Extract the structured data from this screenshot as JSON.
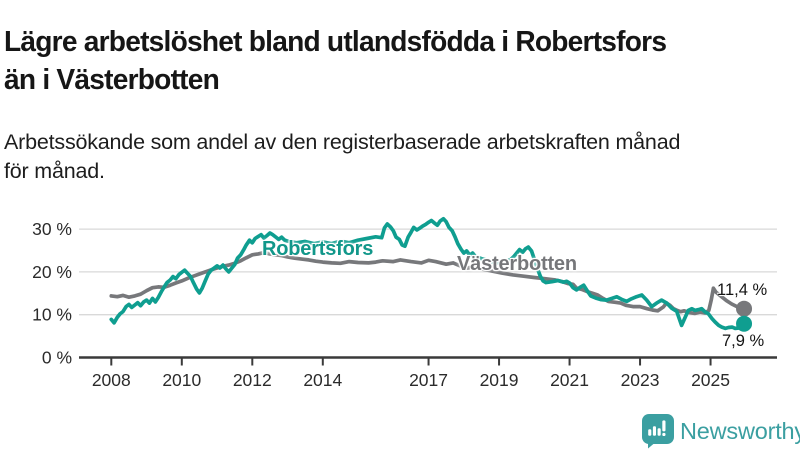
{
  "header": {
    "title_lines": [
      "Lägre arbetslöshet bland utlandsfödda i Robertsfors",
      "än i Västerbotten"
    ],
    "subtitle_lines": [
      "Arbetssökande som andel av den registerbaserade arbetskraften månad",
      "för månad."
    ]
  },
  "footer": {
    "brand": "Newsworthy"
  },
  "colors": {
    "robertsfors_teal": "#0f9e90",
    "vasterbotten_gray": "#77787b",
    "axis": "#3a3a3a",
    "grid": "#d9d9d9",
    "tick_text": "#2b2b2b",
    "brand_teal": "#3b9fa1"
  },
  "chart_data": {
    "type": "line",
    "title": "Lägre arbetslöshet bland utlandsfödda i Robertsfors än i Västerbotten",
    "subtitle": "Arbetssökande som andel av den registerbaserade arbetskraften månad för månad.",
    "x_unit": "year (decimal; monthly observations)",
    "y_unit": "percent",
    "ylim": [
      0,
      34
    ],
    "grid": "horizontal",
    "yticks": [
      {
        "value": 0,
        "label": "0 %"
      },
      {
        "value": 10,
        "label": "10 %"
      },
      {
        "value": 20,
        "label": "20 %"
      },
      {
        "value": 30,
        "label": "30 %"
      }
    ],
    "xticks": [
      {
        "value": 2008,
        "label": "2008"
      },
      {
        "value": 2010,
        "label": "2010"
      },
      {
        "value": 2012,
        "label": "2012"
      },
      {
        "value": 2014,
        "label": "2014"
      },
      {
        "value": 2017,
        "label": "2017"
      },
      {
        "value": 2019,
        "label": "2019"
      },
      {
        "value": 2021,
        "label": "2021"
      },
      {
        "value": 2023,
        "label": "2023"
      },
      {
        "value": 2025,
        "label": "2025"
      }
    ],
    "series": [
      {
        "name": "Robertsfors",
        "color": "#0f9e90",
        "end_label": "7,9 %",
        "end_value": 7.9,
        "points": [
          [
            2008.0,
            8.9
          ],
          [
            2008.08,
            8.1
          ],
          [
            2008.17,
            9.4
          ],
          [
            2008.25,
            10.2
          ],
          [
            2008.33,
            10.7
          ],
          [
            2008.42,
            11.9
          ],
          [
            2008.5,
            12.4
          ],
          [
            2008.58,
            11.7
          ],
          [
            2008.67,
            12.3
          ],
          [
            2008.75,
            12.8
          ],
          [
            2008.83,
            12.1
          ],
          [
            2008.92,
            13.0
          ],
          [
            2009.0,
            13.4
          ],
          [
            2009.08,
            12.7
          ],
          [
            2009.17,
            13.8
          ],
          [
            2009.25,
            13.0
          ],
          [
            2009.33,
            14.0
          ],
          [
            2009.42,
            15.4
          ],
          [
            2009.5,
            16.5
          ],
          [
            2009.58,
            17.5
          ],
          [
            2009.67,
            18.1
          ],
          [
            2009.75,
            18.9
          ],
          [
            2009.83,
            18.4
          ],
          [
            2009.92,
            19.4
          ],
          [
            2010.0,
            19.9
          ],
          [
            2010.08,
            20.4
          ],
          [
            2010.17,
            19.6
          ],
          [
            2010.25,
            18.9
          ],
          [
            2010.33,
            17.5
          ],
          [
            2010.42,
            16.0
          ],
          [
            2010.5,
            15.1
          ],
          [
            2010.58,
            16.2
          ],
          [
            2010.67,
            18.0
          ],
          [
            2010.75,
            19.5
          ],
          [
            2010.83,
            20.4
          ],
          [
            2010.92,
            20.9
          ],
          [
            2011.0,
            21.4
          ],
          [
            2011.08,
            20.9
          ],
          [
            2011.17,
            21.6
          ],
          [
            2011.25,
            20.7
          ],
          [
            2011.33,
            20.0
          ],
          [
            2011.42,
            20.9
          ],
          [
            2011.5,
            21.7
          ],
          [
            2011.58,
            23.2
          ],
          [
            2011.67,
            24.0
          ],
          [
            2011.75,
            25.1
          ],
          [
            2011.83,
            26.3
          ],
          [
            2011.92,
            27.4
          ],
          [
            2012.0,
            26.8
          ],
          [
            2012.08,
            27.8
          ],
          [
            2012.17,
            28.3
          ],
          [
            2012.25,
            28.7
          ],
          [
            2012.33,
            27.9
          ],
          [
            2012.42,
            28.5
          ],
          [
            2012.5,
            29.1
          ],
          [
            2012.58,
            28.7
          ],
          [
            2012.67,
            28.1
          ],
          [
            2012.75,
            27.6
          ],
          [
            2012.83,
            28.1
          ],
          [
            2012.92,
            27.4
          ],
          [
            2013.0,
            27.2
          ],
          [
            2013.25,
            26.8
          ],
          [
            2013.5,
            27.1
          ],
          [
            2013.75,
            26.6
          ],
          [
            2014.0,
            27.0
          ],
          [
            2014.25,
            26.6
          ],
          [
            2014.5,
            27.2
          ],
          [
            2014.75,
            26.8
          ],
          [
            2015.0,
            27.4
          ],
          [
            2015.25,
            27.8
          ],
          [
            2015.5,
            28.2
          ],
          [
            2015.67,
            28.0
          ],
          [
            2015.75,
            30.3
          ],
          [
            2015.83,
            31.2
          ],
          [
            2015.92,
            30.5
          ],
          [
            2016.0,
            29.6
          ],
          [
            2016.08,
            28.1
          ],
          [
            2016.17,
            27.6
          ],
          [
            2016.25,
            26.3
          ],
          [
            2016.33,
            26.0
          ],
          [
            2016.42,
            28.1
          ],
          [
            2016.5,
            29.2
          ],
          [
            2016.58,
            30.4
          ],
          [
            2016.67,
            29.8
          ],
          [
            2016.75,
            30.2
          ],
          [
            2016.83,
            30.7
          ],
          [
            2016.92,
            31.1
          ],
          [
            2017.0,
            31.6
          ],
          [
            2017.08,
            32.0
          ],
          [
            2017.17,
            31.4
          ],
          [
            2017.25,
            30.9
          ],
          [
            2017.33,
            31.9
          ],
          [
            2017.42,
            32.4
          ],
          [
            2017.5,
            31.7
          ],
          [
            2017.58,
            30.4
          ],
          [
            2017.67,
            29.6
          ],
          [
            2017.75,
            28.2
          ],
          [
            2017.83,
            26.6
          ],
          [
            2017.92,
            25.3
          ],
          [
            2018.0,
            24.4
          ],
          [
            2018.08,
            24.9
          ],
          [
            2018.17,
            23.9
          ],
          [
            2018.25,
            24.4
          ],
          [
            2018.33,
            23.6
          ],
          [
            2018.5,
            23.1
          ],
          [
            2018.67,
            22.7
          ],
          [
            2018.83,
            22.3
          ],
          [
            2019.0,
            22.1
          ],
          [
            2019.17,
            22.4
          ],
          [
            2019.33,
            22.9
          ],
          [
            2019.42,
            23.6
          ],
          [
            2019.5,
            24.4
          ],
          [
            2019.58,
            25.2
          ],
          [
            2019.67,
            24.6
          ],
          [
            2019.75,
            25.4
          ],
          [
            2019.83,
            25.8
          ],
          [
            2019.92,
            24.9
          ],
          [
            2020.0,
            23.0
          ],
          [
            2020.08,
            21.0
          ],
          [
            2020.17,
            19.0
          ],
          [
            2020.25,
            17.9
          ],
          [
            2020.33,
            17.5
          ],
          [
            2020.5,
            17.7
          ],
          [
            2020.67,
            18.0
          ],
          [
            2020.83,
            17.6
          ],
          [
            2020.92,
            17.8
          ],
          [
            2021.0,
            17.4
          ],
          [
            2021.1,
            16.3
          ],
          [
            2021.2,
            15.8
          ],
          [
            2021.3,
            16.4
          ],
          [
            2021.4,
            16.9
          ],
          [
            2021.5,
            15.6
          ],
          [
            2021.6,
            14.4
          ],
          [
            2021.77,
            13.8
          ],
          [
            2021.9,
            13.5
          ],
          [
            2022.05,
            13.4
          ],
          [
            2022.2,
            13.8
          ],
          [
            2022.34,
            14.2
          ],
          [
            2022.5,
            13.5
          ],
          [
            2022.62,
            13.1
          ],
          [
            2022.75,
            13.7
          ],
          [
            2022.9,
            14.2
          ],
          [
            2023.05,
            14.6
          ],
          [
            2023.19,
            13.4
          ],
          [
            2023.33,
            11.9
          ],
          [
            2023.47,
            12.7
          ],
          [
            2023.61,
            13.4
          ],
          [
            2023.76,
            12.7
          ],
          [
            2023.9,
            11.5
          ],
          [
            2024.04,
            10.8
          ],
          [
            2024.18,
            7.5
          ],
          [
            2024.28,
            9.4
          ],
          [
            2024.37,
            11.0
          ],
          [
            2024.47,
            11.4
          ],
          [
            2024.56,
            11.0
          ],
          [
            2024.66,
            11.2
          ],
          [
            2024.75,
            11.4
          ],
          [
            2024.85,
            10.6
          ],
          [
            2024.94,
            10.2
          ],
          [
            2025.04,
            9.1
          ],
          [
            2025.13,
            8.3
          ],
          [
            2025.23,
            7.5
          ],
          [
            2025.32,
            7.1
          ],
          [
            2025.42,
            6.8
          ],
          [
            2025.51,
            7.0
          ],
          [
            2025.61,
            7.1
          ],
          [
            2025.7,
            6.8
          ],
          [
            2025.8,
            6.9
          ],
          [
            2025.89,
            7.4
          ],
          [
            2025.95,
            7.9
          ]
        ]
      },
      {
        "name": "Västerbotten",
        "color": "#77787b",
        "end_label": "11,4 %",
        "end_value": 11.4,
        "points": [
          [
            2008.0,
            14.4
          ],
          [
            2008.17,
            14.2
          ],
          [
            2008.33,
            14.5
          ],
          [
            2008.5,
            14.1
          ],
          [
            2008.67,
            14.4
          ],
          [
            2008.83,
            14.8
          ],
          [
            2009.0,
            15.6
          ],
          [
            2009.17,
            16.3
          ],
          [
            2009.33,
            16.5
          ],
          [
            2009.5,
            16.4
          ],
          [
            2009.67,
            16.9
          ],
          [
            2009.83,
            17.4
          ],
          [
            2010.0,
            17.9
          ],
          [
            2010.17,
            18.5
          ],
          [
            2010.33,
            19.0
          ],
          [
            2010.5,
            19.5
          ],
          [
            2010.67,
            20.0
          ],
          [
            2010.83,
            20.5
          ],
          [
            2011.0,
            20.9
          ],
          [
            2011.17,
            21.3
          ],
          [
            2011.33,
            21.6
          ],
          [
            2011.5,
            22.0
          ],
          [
            2011.67,
            22.6
          ],
          [
            2011.83,
            23.3
          ],
          [
            2012.0,
            24.0
          ],
          [
            2012.17,
            24.2
          ],
          [
            2012.33,
            24.5
          ],
          [
            2012.5,
            24.2
          ],
          [
            2012.67,
            24.0
          ],
          [
            2012.83,
            23.8
          ],
          [
            2013.0,
            23.5
          ],
          [
            2013.2,
            23.2
          ],
          [
            2013.4,
            23.0
          ],
          [
            2013.6,
            22.8
          ],
          [
            2013.8,
            22.5
          ],
          [
            2014.0,
            22.3
          ],
          [
            2014.25,
            22.1
          ],
          [
            2014.5,
            22.0
          ],
          [
            2014.75,
            22.4
          ],
          [
            2015.0,
            22.2
          ],
          [
            2015.3,
            22.1
          ],
          [
            2015.5,
            22.3
          ],
          [
            2015.7,
            22.6
          ],
          [
            2016.0,
            22.4
          ],
          [
            2016.2,
            22.8
          ],
          [
            2016.5,
            22.4
          ],
          [
            2016.8,
            22.1
          ],
          [
            2017.0,
            22.7
          ],
          [
            2017.2,
            22.4
          ],
          [
            2017.5,
            21.8
          ],
          [
            2017.7,
            22.1
          ],
          [
            2017.9,
            21.4
          ],
          [
            2018.1,
            20.9
          ],
          [
            2018.3,
            21.2
          ],
          [
            2018.5,
            20.7
          ],
          [
            2018.8,
            20.2
          ],
          [
            2019.1,
            19.7
          ],
          [
            2019.4,
            19.3
          ],
          [
            2019.7,
            19.0
          ],
          [
            2020.0,
            18.7
          ],
          [
            2020.3,
            18.4
          ],
          [
            2020.6,
            18.1
          ],
          [
            2020.8,
            17.7
          ],
          [
            2020.95,
            17.3
          ],
          [
            2021.1,
            17.1
          ],
          [
            2021.2,
            16.2
          ],
          [
            2021.35,
            15.9
          ],
          [
            2021.5,
            15.4
          ],
          [
            2021.65,
            15.0
          ],
          [
            2021.8,
            14.6
          ],
          [
            2021.95,
            13.8
          ],
          [
            2022.1,
            13.1
          ],
          [
            2022.3,
            12.9
          ],
          [
            2022.45,
            12.7
          ],
          [
            2022.6,
            12.2
          ],
          [
            2022.8,
            11.9
          ],
          [
            2023.0,
            11.9
          ],
          [
            2023.2,
            11.4
          ],
          [
            2023.35,
            11.1
          ],
          [
            2023.5,
            10.9
          ],
          [
            2023.66,
            11.8
          ],
          [
            2023.75,
            12.7
          ],
          [
            2023.85,
            12.2
          ],
          [
            2023.95,
            11.4
          ],
          [
            2024.05,
            11.0
          ],
          [
            2024.15,
            10.7
          ],
          [
            2024.25,
            10.9
          ],
          [
            2024.4,
            10.5
          ],
          [
            2024.55,
            10.3
          ],
          [
            2024.7,
            10.6
          ],
          [
            2024.85,
            10.4
          ],
          [
            2024.95,
            11.0
          ],
          [
            2025.02,
            13.5
          ],
          [
            2025.08,
            16.2
          ],
          [
            2025.15,
            15.3
          ],
          [
            2025.3,
            14.3
          ],
          [
            2025.45,
            13.3
          ],
          [
            2025.6,
            12.5
          ],
          [
            2025.75,
            11.9
          ],
          [
            2025.87,
            11.5
          ],
          [
            2025.95,
            11.4
          ]
        ]
      }
    ]
  }
}
